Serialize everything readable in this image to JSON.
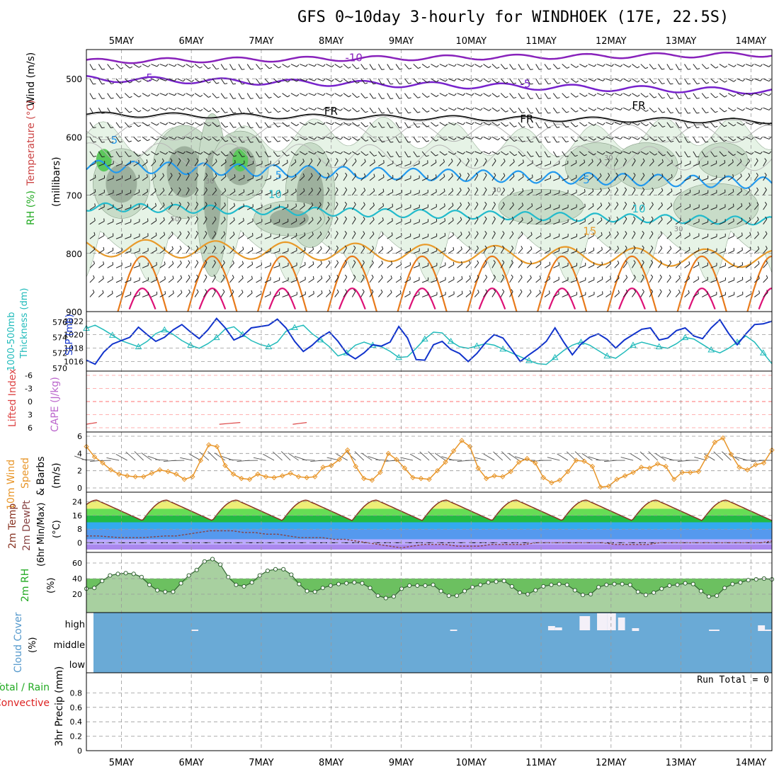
{
  "title": "GFS 0~10day 3-hourly for WINDHOEK (17E, 22.5S)",
  "chart_data": {
    "type": "meteogram",
    "dates": [
      "5MAY",
      "6MAY",
      "7MAY",
      "8MAY",
      "9MAY",
      "10MAY",
      "11MAY",
      "12MAY",
      "13MAY",
      "14MAY"
    ],
    "x_range_days": [
      4.5,
      14.3
    ],
    "colors": {
      "rh_fill": "#e6f3e6",
      "rh_mid": "#c8dcc8",
      "rh_dark": "#9db09d",
      "rh_bright": "#5cc85c",
      "temp_m10": "#8822bb",
      "temp_m5": "#7722cc",
      "temp_5": "#2299ee",
      "temp_10": "#22bbcc",
      "temp_15": "#e89a2a",
      "temp_20": "#e87a1a",
      "temp_25": "#dd1177",
      "slp": "#1133cc",
      "thickness": "#22bbbb",
      "wind10": "#e8962a",
      "cloud": "#6aaad6",
      "cloud_gap": "#f4f0f8"
    },
    "panels": {
      "upper": {
        "ylabels": [
          "Wind (m/s)",
          "Temperature (°C)",
          "RH (%)",
          "(millibars)"
        ],
        "levels_mb": [
          "500",
          "600",
          "700",
          "800",
          "900"
        ],
        "ylim": [
          450,
          900
        ],
        "contour_labels": [
          "-10",
          "-5",
          "-5",
          "FR",
          "FR",
          "FR",
          "5",
          "5",
          "5",
          "10",
          "15",
          "10",
          "30",
          "30",
          "30",
          "30",
          "50"
        ]
      },
      "thickness_slp": {
        "ylabels": [
          "1000-500mb",
          "Thickness (dm)",
          "SLP (mb)"
        ],
        "thickness_ticks": [
          "576",
          "574",
          "572",
          "570"
        ],
        "slp_ticks": [
          "1022",
          "1020",
          "1018",
          "1016"
        ],
        "slp_ylim": [
          1015,
          1023
        ],
        "slp": [
          1016.2,
          1015.6,
          1017.4,
          1018.6,
          1019.1,
          1019.6,
          1021.1,
          1020.0,
          1019.0,
          1019.6,
          1020.7,
          1021.5,
          1020.4,
          1019.4,
          1020.7,
          1022.4,
          1021.0,
          1019.2,
          1019.8,
          1021.0,
          1021.2,
          1021.4,
          1022.3,
          1021.0,
          1019.0,
          1017.5,
          1018.4,
          1019.6,
          1020.4,
          1019.0,
          1017.2,
          1016.4,
          1017.3,
          1018.5,
          1018.3,
          1018.9,
          1021.2,
          1019.5,
          1016.3,
          1016.2,
          1018.5,
          1019.0,
          1017.8,
          1017.2,
          1016.0,
          1017.2,
          1018.8,
          1020.0,
          1019.5,
          1017.8,
          1016.0,
          1017.0,
          1017.9,
          1019.0,
          1021.0,
          1018.9,
          1017.0,
          1018.6,
          1019.6,
          1020.1,
          1019.3,
          1018.0,
          1019.2,
          1020.0,
          1020.8,
          1021.0,
          1019.2,
          1019.5,
          1020.6,
          1021.0,
          1019.8,
          1019.4,
          1021.0,
          1022.2,
          1020.2,
          1018.5,
          1020.1,
          1021.5,
          1021.6,
          1022.0
        ],
        "thickness": [
          575.2,
          575.6,
          575.0,
          574.3,
          573.6,
          573.2,
          572.8,
          573.5,
          574.5,
          575.0,
          574.4,
          573.6,
          573.0,
          572.6,
          573.2,
          574.0,
          575.1,
          575.4,
          574.4,
          573.6,
          573.1,
          572.8,
          573.4,
          574.8,
          575.3,
          575.6,
          574.5,
          573.7,
          572.8,
          571.6,
          572.0,
          573.0,
          573.4,
          573.0,
          572.8,
          572.2,
          571.4,
          571.5,
          572.6,
          573.8,
          574.7,
          574.6,
          573.5,
          572.8,
          572.6,
          572.9,
          573.2,
          573.0,
          572.5,
          572.0,
          571.5,
          571.0,
          570.6,
          570.5,
          571.4,
          572.3,
          573.0,
          573.4,
          573.0,
          572.3,
          571.6,
          571.3,
          572.1,
          573.0,
          573.4,
          573.1,
          572.8,
          572.6,
          573.2,
          574.0,
          573.8,
          573.1,
          572.4,
          572.0,
          572.6,
          573.4,
          574.2,
          573.4,
          572.0,
          570.6
        ]
      },
      "cape_li": {
        "ylabels": [
          "Lifted Index",
          "CAPE (J/kg)"
        ],
        "li_ticks": [
          "-6",
          "-3",
          "0",
          "3",
          "6"
        ],
        "ylim": [
          -6,
          6
        ]
      },
      "wind10m": {
        "ylabels": [
          "10m Wind",
          "Speed",
          "& Barbs",
          "(m/s)"
        ],
        "ticks": [
          "6",
          "4",
          "2",
          "0"
        ],
        "ylim": [
          0,
          6
        ],
        "speed": [
          4.8,
          3.6,
          2.9,
          2.1,
          1.6,
          1.4,
          1.3,
          1.3,
          1.7,
          2.1,
          1.9,
          1.6,
          1.0,
          1.3,
          3.2,
          5.0,
          4.8,
          2.6,
          1.6,
          1.1,
          1.0,
          1.6,
          1.3,
          1.2,
          1.4,
          1.7,
          1.3,
          1.2,
          1.3,
          2.4,
          2.6,
          3.3,
          4.4,
          2.5,
          1.1,
          0.9,
          1.8,
          4.0,
          3.3,
          2.3,
          1.2,
          1.1,
          1.0,
          2.0,
          3.0,
          4.3,
          5.5,
          4.8,
          2.3,
          1.1,
          1.4,
          1.3,
          1.9,
          3.0,
          3.4,
          2.9,
          1.2,
          0.6,
          0.9,
          1.9,
          3.2,
          3.1,
          2.5,
          0.1,
          0.2,
          1.0,
          1.4,
          1.8,
          2.4,
          2.3,
          2.8,
          2.5,
          1.0,
          1.8,
          1.8,
          1.9,
          3.6,
          5.3,
          5.8,
          3.9,
          2.4,
          2.1,
          2.7,
          2.9,
          4.4
        ]
      },
      "temp2m": {
        "ylabels": [
          "2m Temp",
          "2m DewPt",
          "(6hr Min/Max)",
          "(°C)"
        ],
        "ticks": [
          "24",
          "16",
          "8",
          "0"
        ],
        "ylim": [
          -4,
          28
        ],
        "temp_cycle": {
          "min": 13,
          "max": 25
        },
        "dewpoint": [
          4,
          4,
          3.5,
          3,
          3,
          3,
          3.5,
          4,
          4,
          5,
          6,
          7,
          7,
          7,
          6,
          6,
          5,
          5,
          4,
          3,
          3,
          3,
          2,
          2,
          1,
          0,
          -1,
          -2,
          -3,
          -2,
          -1,
          -1,
          -1,
          -2,
          -2,
          -2,
          -1,
          -1,
          -1,
          -1,
          0,
          0,
          0,
          0,
          0,
          0,
          0,
          -1,
          -1,
          -1,
          -1,
          0,
          0,
          0,
          0,
          0,
          0,
          0,
          0,
          0,
          0,
          1
        ]
      },
      "rh2m": {
        "ylabels": [
          "2m RH",
          "(%)"
        ],
        "ticks": [
          "60",
          "40",
          "20"
        ],
        "ylim": [
          0,
          70
        ],
        "values": [
          27,
          28,
          37,
          44,
          46,
          47,
          46,
          42,
          32,
          25,
          23,
          23,
          34,
          44,
          51,
          62,
          65,
          58,
          42,
          32,
          30,
          35,
          44,
          50,
          52,
          52,
          45,
          33,
          24,
          23,
          28,
          31,
          33,
          34,
          35,
          34,
          28,
          18,
          15,
          17,
          27,
          31,
          31,
          31,
          32,
          24,
          18,
          18,
          24,
          29,
          32,
          35,
          36,
          37,
          30,
          22,
          20,
          25,
          30,
          32,
          33,
          32,
          25,
          19,
          20,
          29,
          32,
          33,
          33,
          32,
          23,
          19,
          22,
          27,
          31,
          32,
          34,
          33,
          24,
          17,
          18,
          28,
          33,
          35,
          38,
          39,
          40,
          39
        ]
      },
      "cloud": {
        "ylabels": [
          "Cloud Cover",
          "(%)"
        ],
        "levels": [
          "high",
          "middle",
          "low"
        ]
      },
      "precip": {
        "ylabels": [
          "Total / Rain",
          "Convective",
          "3hr Precip (mm)"
        ],
        "ticks": [
          "0.8",
          "0.6",
          "0.4",
          "0.2",
          "0"
        ],
        "ylim": [
          0,
          1.0
        ],
        "run_total": "Run Total = 0"
      }
    }
  }
}
